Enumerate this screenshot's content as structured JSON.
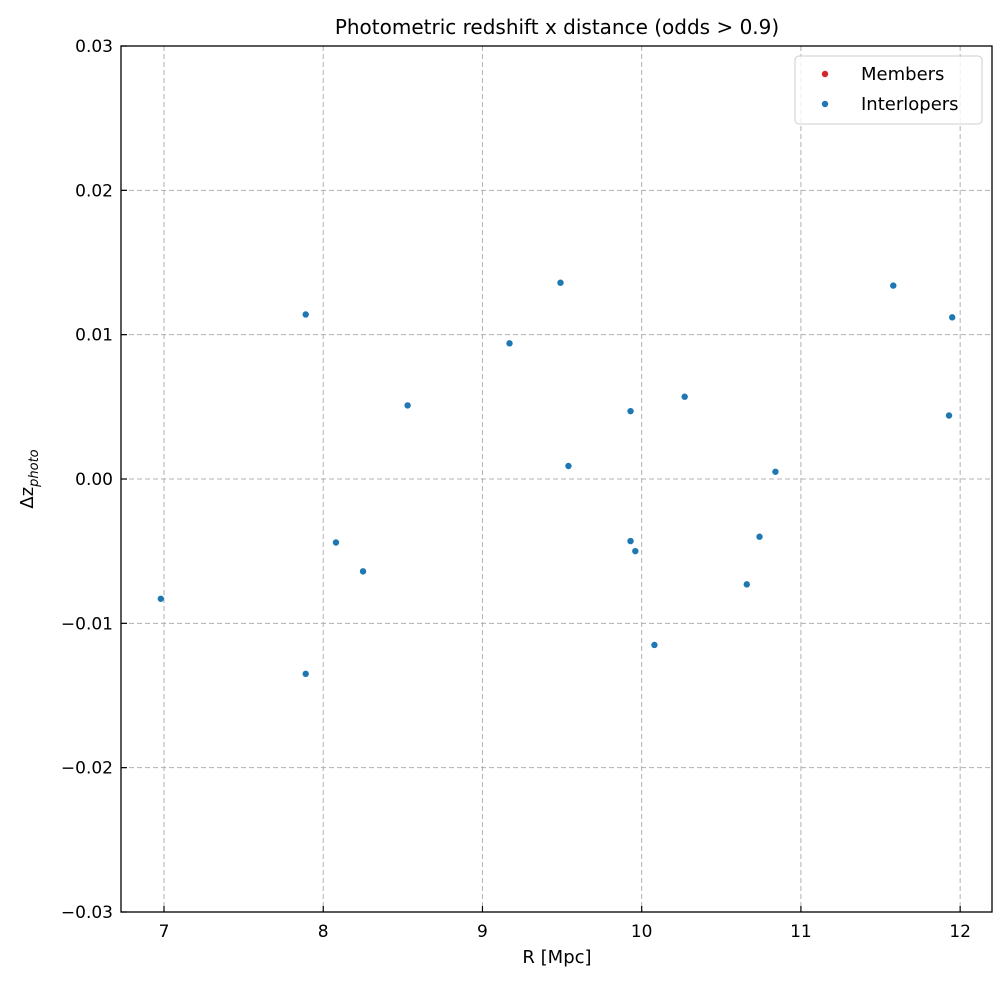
{
  "chart_data": {
    "type": "scatter",
    "title": "Photometric redshift x distance (odds > 0.9)",
    "xlabel": "R [Mpc]",
    "ylabel": {
      "base": "Δz",
      "subscript": "photo"
    },
    "xlim": [
      6.73,
      12.2
    ],
    "ylim": [
      -0.03,
      0.03
    ],
    "xticks": [
      7,
      8,
      9,
      10,
      11,
      12
    ],
    "xtick_labels": [
      "7",
      "8",
      "9",
      "10",
      "11",
      "12"
    ],
    "yticks": [
      -0.03,
      -0.02,
      -0.01,
      0.0,
      0.01,
      0.02,
      0.03
    ],
    "ytick_labels": [
      "−0.03",
      "−0.02",
      "−0.01",
      "0.00",
      "0.01",
      "0.02",
      "0.03"
    ],
    "grid": true,
    "legend_position": "top-right",
    "series": [
      {
        "name": "Members",
        "color": "#d62728",
        "points": []
      },
      {
        "name": "Interlopers",
        "color": "#1f77b4",
        "points": [
          {
            "x": 6.98,
            "y": -0.0083
          },
          {
            "x": 7.89,
            "y": 0.0114
          },
          {
            "x": 7.89,
            "y": -0.0135
          },
          {
            "x": 8.08,
            "y": -0.0044
          },
          {
            "x": 8.25,
            "y": -0.0064
          },
          {
            "x": 8.53,
            "y": 0.0051
          },
          {
            "x": 9.17,
            "y": 0.0094
          },
          {
            "x": 9.49,
            "y": 0.0136
          },
          {
            "x": 9.54,
            "y": 0.0009
          },
          {
            "x": 9.93,
            "y": 0.0047
          },
          {
            "x": 9.93,
            "y": -0.0043
          },
          {
            "x": 9.96,
            "y": -0.005
          },
          {
            "x": 10.08,
            "y": -0.0115
          },
          {
            "x": 10.27,
            "y": 0.0057
          },
          {
            "x": 10.66,
            "y": -0.0073
          },
          {
            "x": 10.74,
            "y": -0.004
          },
          {
            "x": 10.84,
            "y": 0.0005
          },
          {
            "x": 11.58,
            "y": 0.0134
          },
          {
            "x": 11.93,
            "y": 0.0044
          },
          {
            "x": 11.95,
            "y": 0.0112
          }
        ]
      }
    ]
  }
}
